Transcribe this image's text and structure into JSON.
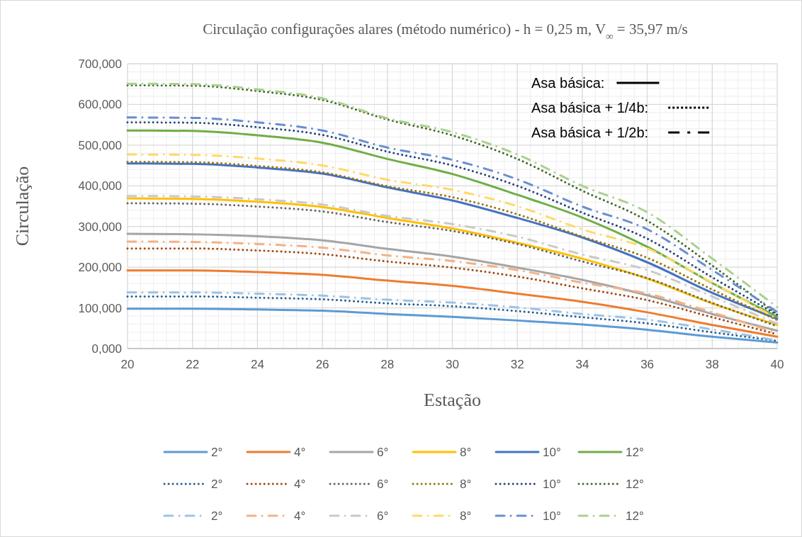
{
  "chart_data": {
    "type": "line",
    "title": "Circulação configurações alares (método numérico) - h = 0,25 m, V$_{∞}$ = 35,97 m/s",
    "xlabel": "Estação",
    "ylabel": "Circulação",
    "x": [
      20,
      22,
      24,
      26,
      28,
      30,
      32,
      34,
      36,
      38,
      40
    ],
    "xlim": [
      20,
      40
    ],
    "xticks": [
      20,
      22,
      24,
      26,
      28,
      30,
      32,
      34,
      36,
      38,
      40
    ],
    "ylim": [
      0,
      700
    ],
    "yticks": [
      {
        "value": 0,
        "label": "0,000"
      },
      {
        "value": 100,
        "label": "100,000"
      },
      {
        "value": 200,
        "label": "200,000"
      },
      {
        "value": 300,
        "label": "300,000"
      },
      {
        "value": 400,
        "label": "400,000"
      },
      {
        "value": 500,
        "label": "500,000"
      },
      {
        "value": 600,
        "label": "600,000"
      },
      {
        "value": 700,
        "label": "700,000"
      }
    ],
    "grid": true,
    "legend": "bottom",
    "marker": "none",
    "annotations": [
      "Asa básica:",
      "Asa básica + 1/4b:",
      "Asa básica + 1/2b:"
    ],
    "series": [
      {
        "name": "2°",
        "color": "#5b9bd5",
        "line_style": "solid",
        "values": [
          98,
          98,
          96,
          93,
          85,
          78,
          69,
          59,
          46,
          29,
          15
        ]
      },
      {
        "name": "4°",
        "color": "#ed7d31",
        "line_style": "solid",
        "values": [
          192,
          192,
          188,
          181,
          167,
          154,
          135,
          115,
          89,
          58,
          29
        ]
      },
      {
        "name": "6°",
        "color": "#a5a5a5",
        "line_style": "solid",
        "values": [
          282,
          281,
          276,
          266,
          245,
          226,
          199,
          169,
          131,
          85,
          44
        ]
      },
      {
        "name": "8°",
        "color": "#ffc000",
        "line_style": "solid",
        "values": [
          369,
          368,
          361,
          348,
          321,
          295,
          260,
          221,
          172,
          111,
          58
        ]
      },
      {
        "name": "10°",
        "color": "#4472c4",
        "line_style": "solid",
        "values": [
          455,
          454,
          445,
          430,
          396,
          364,
          321,
          273,
          212,
          137,
          73
        ]
      },
      {
        "name": "12°",
        "color": "#70ad47",
        "line_style": "solid",
        "values": [
          536,
          535,
          524,
          506,
          466,
          429,
          378,
          322,
          250,
          161,
          78
        ]
      },
      {
        "name": "2°",
        "color": "#255e91",
        "line_style": "dotted",
        "values": [
          128,
          128,
          125,
          121,
          111,
          104,
          92,
          77,
          62,
          40,
          19
        ]
      },
      {
        "name": "4°",
        "color": "#9e480e",
        "line_style": "dotted",
        "values": [
          246,
          246,
          241,
          232,
          214,
          199,
          177,
          148,
          119,
          77,
          35
        ]
      },
      {
        "name": "6°",
        "color": "#636363",
        "line_style": "dotted",
        "values": [
          357,
          356,
          349,
          337,
          311,
          289,
          257,
          214,
          173,
          112,
          55
        ]
      },
      {
        "name": "8°",
        "color": "#997300",
        "line_style": "dotted",
        "values": [
          459,
          458,
          449,
          433,
          399,
          372,
          330,
          275,
          223,
          145,
          70
        ]
      },
      {
        "name": "10°",
        "color": "#264478",
        "line_style": "dotted",
        "values": [
          556,
          555,
          544,
          525,
          484,
          450,
          400,
          334,
          270,
          175,
          83
        ]
      },
      {
        "name": "12°",
        "color": "#43682b",
        "line_style": "dotted",
        "values": [
          647,
          646,
          633,
          611,
          563,
          524,
          466,
          388,
          314,
          204,
          84
        ]
      },
      {
        "name": "2°",
        "color": "#9dc3e6",
        "line_style": "dashed",
        "values": [
          138,
          138,
          135,
          130,
          120,
          113,
          101,
          85,
          71,
          47,
          20
        ]
      },
      {
        "name": "4°",
        "color": "#f4b183",
        "line_style": "dashed",
        "values": [
          263,
          262,
          257,
          248,
          229,
          215,
          193,
          162,
          135,
          89,
          38
        ]
      },
      {
        "name": "6°",
        "color": "#c9c9c9",
        "line_style": "dashed",
        "values": [
          375,
          374,
          367,
          354,
          326,
          306,
          275,
          231,
          193,
          128,
          61
        ]
      },
      {
        "name": "8°",
        "color": "#ffd966",
        "line_style": "dashed",
        "values": [
          477,
          476,
          467,
          450,
          415,
          390,
          350,
          293,
          246,
          162,
          73
        ]
      },
      {
        "name": "10°",
        "color": "#698ed0",
        "line_style": "dashed",
        "values": [
          568,
          567,
          556,
          536,
          494,
          464,
          416,
          349,
          293,
          193,
          90
        ]
      },
      {
        "name": "12°",
        "color": "#a9d18e",
        "line_style": "dashed",
        "values": [
          651,
          650,
          637,
          615,
          566,
          532,
          477,
          400,
          335,
          221,
          102
        ]
      }
    ]
  }
}
